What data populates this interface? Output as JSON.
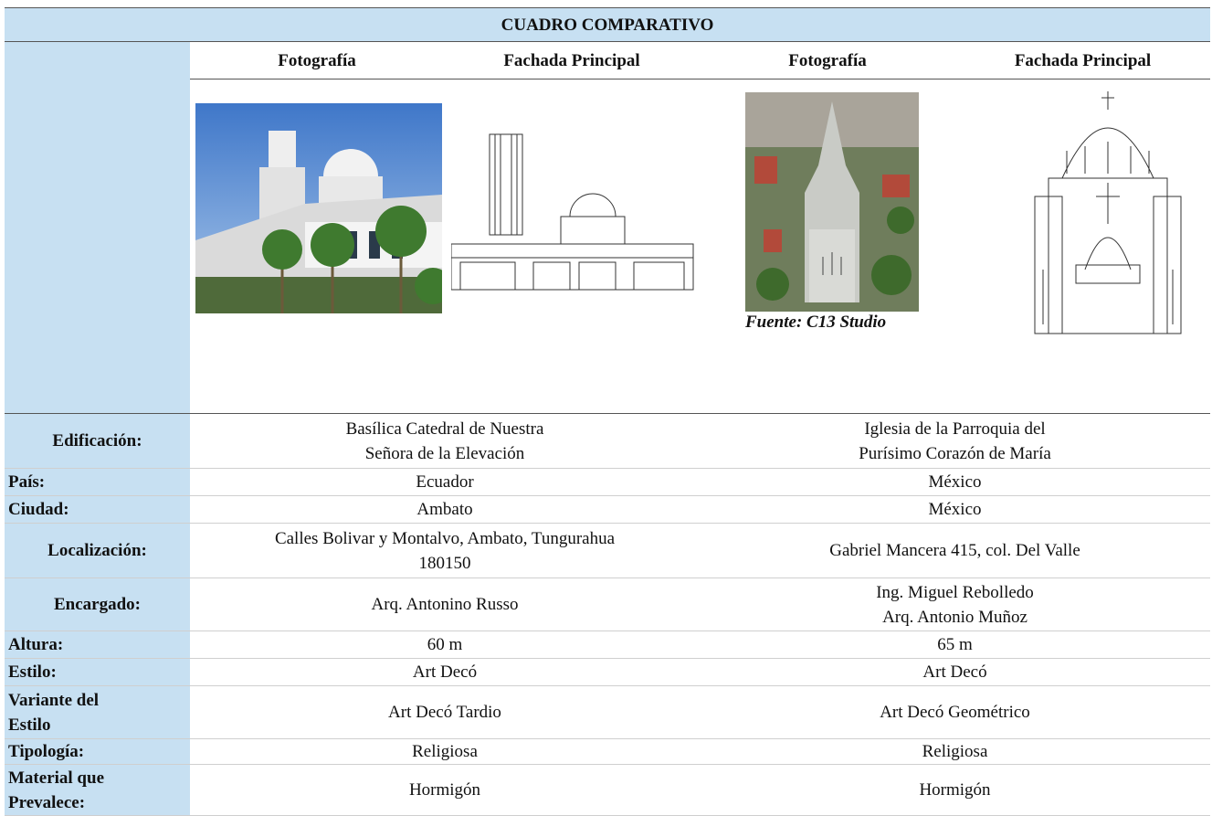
{
  "title": "CUADRO COMPARATIVO",
  "header": {
    "columns": [
      "Fotografía",
      "Fachada Principal",
      "Fotografía",
      "Fachada Principal"
    ]
  },
  "caption": "Fuente: C13 Studio",
  "rows": [
    {
      "label": [
        "Edificación:"
      ],
      "values": [
        [
          "Basílica Catedral de Nuestra",
          "Señora de la Elevación"
        ],
        [
          "Iglesia de la Parroquia del",
          "Purísimo Corazón de María"
        ]
      ]
    },
    {
      "label": [
        "País:"
      ],
      "values": [
        [
          "Ecuador"
        ],
        [
          "México"
        ]
      ]
    },
    {
      "label": [
        "Ciudad:"
      ],
      "values": [
        [
          "Ambato"
        ],
        [
          "México"
        ]
      ]
    },
    {
      "label": [
        "Localización:"
      ],
      "values": [
        [
          "Calles Bolivar y Montalvo, Ambato, Tungurahua",
          "180150"
        ],
        [
          "Gabriel Mancera 415, col. Del Valle"
        ]
      ]
    },
    {
      "label": [
        "Encargado:"
      ],
      "values": [
        [
          "Arq. Antonino Russo"
        ],
        [
          "Ing. Miguel Rebolledo",
          "Arq. Antonio Muñoz"
        ]
      ]
    },
    {
      "label": [
        "Altura:"
      ],
      "values": [
        [
          "60 m"
        ],
        [
          "65 m"
        ]
      ]
    },
    {
      "label": [
        "Estilo:"
      ],
      "values": [
        [
          "Art Decó"
        ],
        [
          "Art Decó"
        ]
      ]
    },
    {
      "label": [
        "Variante del",
        "Estilo"
      ],
      "values": [
        [
          "Art Decó Tardio"
        ],
        [
          "Art Decó Geométrico"
        ]
      ]
    },
    {
      "label": [
        "Tipología:"
      ],
      "values": [
        [
          "Religiosa"
        ],
        [
          "Religiosa"
        ]
      ]
    },
    {
      "label": [
        "Material que",
        "Prevalece:"
      ],
      "values": [
        [
          "Hormigón"
        ],
        [
          "Hormigón"
        ]
      ]
    }
  ]
}
